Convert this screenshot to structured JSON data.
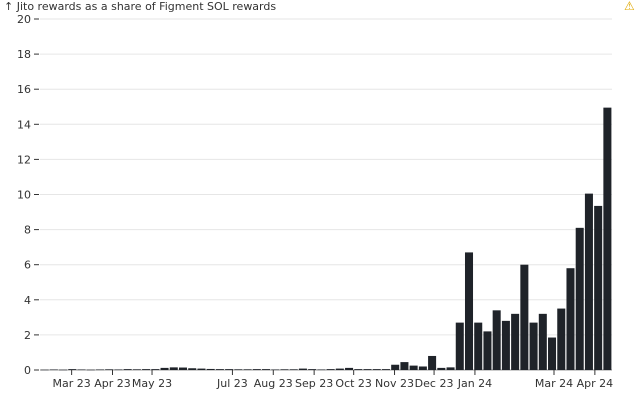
{
  "chart_data": {
    "type": "bar",
    "title": "↑ Jito rewards as a share of Figment SOL rewards",
    "xlabel": "",
    "ylabel": "",
    "ylim": [
      0,
      20
    ],
    "yticks": [
      0,
      2,
      4,
      6,
      8,
      10,
      12,
      14,
      16,
      18,
      20
    ],
    "grid": true,
    "bar_color": "#1f2329",
    "x_start": "2023-02-05",
    "bin_days": 7,
    "xticks": [
      {
        "label": "Mar 23",
        "date": "2023-03-01"
      },
      {
        "label": "Apr 23",
        "date": "2023-04-01"
      },
      {
        "label": "May 23",
        "date": "2023-05-01"
      },
      {
        "label": "Jul 23",
        "date": "2023-07-01"
      },
      {
        "label": "Aug 23",
        "date": "2023-08-01"
      },
      {
        "label": "Sep 23",
        "date": "2023-09-01"
      },
      {
        "label": "Oct 23",
        "date": "2023-10-01"
      },
      {
        "label": "Nov 23",
        "date": "2023-11-01"
      },
      {
        "label": "Dec 23",
        "date": "2023-12-01"
      },
      {
        "label": "Jan 24",
        "date": "2024-01-01"
      },
      {
        "label": "Mar 24",
        "date": "2024-03-01"
      },
      {
        "label": "Apr 24",
        "date": "2024-04-01"
      }
    ],
    "values": [
      0.02,
      0.03,
      0.02,
      0.05,
      0.03,
      0.02,
      0.03,
      0.04,
      0.03,
      0.05,
      0.04,
      0.05,
      0.05,
      0.12,
      0.15,
      0.14,
      0.1,
      0.08,
      0.06,
      0.05,
      0.05,
      0.04,
      0.04,
      0.05,
      0.05,
      0.03,
      0.04,
      0.04,
      0.08,
      0.05,
      0.03,
      0.05,
      0.08,
      0.12,
      0.05,
      0.05,
      0.05,
      0.05,
      0.3,
      0.45,
      0.25,
      0.2,
      0.8,
      0.12,
      0.15,
      2.7,
      6.7,
      2.7,
      2.2,
      3.4,
      2.8,
      3.2,
      6.0,
      2.7,
      3.2,
      1.85,
      3.5,
      5.8,
      8.1,
      10.05,
      9.35,
      14.95
    ]
  }
}
